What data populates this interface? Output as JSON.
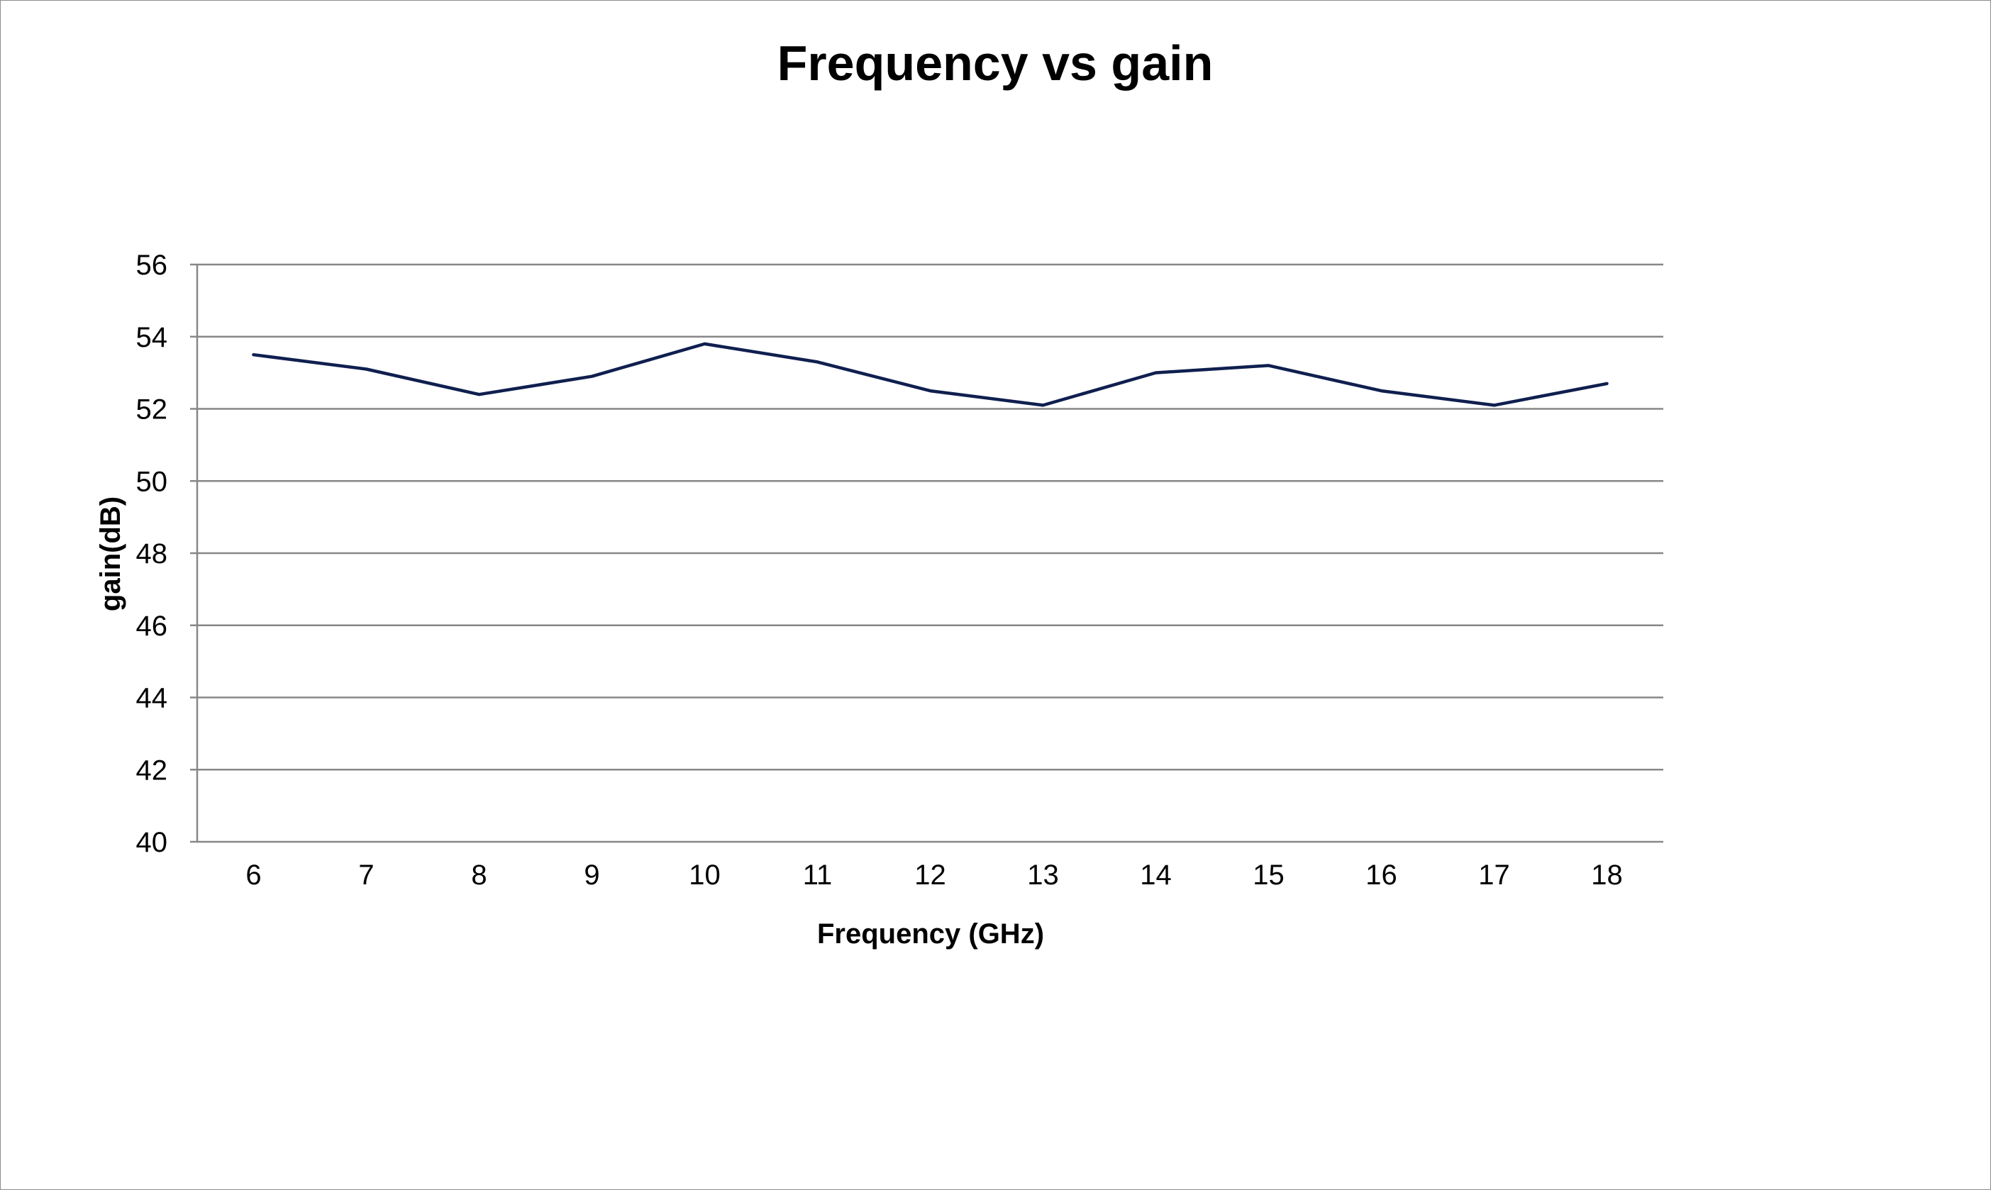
{
  "chart_data": {
    "type": "line",
    "title": "Frequency vs gain",
    "xlabel": "Frequency (GHz)",
    "ylabel": "gain(dB)",
    "categories": [
      "6",
      "7",
      "8",
      "9",
      "10",
      "11",
      "12",
      "13",
      "14",
      "15",
      "16",
      "17",
      "18"
    ],
    "series": [
      {
        "values": [
          53.5,
          53.1,
          52.4,
          52.9,
          53.8,
          53.3,
          52.5,
          52.1,
          53.0,
          53.2,
          52.5,
          52.1,
          52.7
        ],
        "color": "#0f1f4f"
      }
    ],
    "ylim": [
      40,
      56
    ],
    "yticks": [
      40,
      42,
      44,
      46,
      48,
      50,
      52,
      54,
      56
    ],
    "grid": true,
    "legend": "none"
  }
}
